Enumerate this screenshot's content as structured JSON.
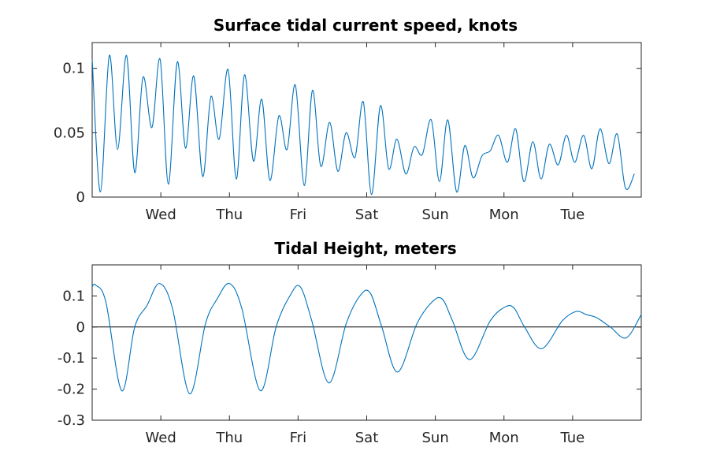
{
  "colors": {
    "series": "#0072BD",
    "axes": "#262626",
    "zero_line": "#000000"
  },
  "chart_data": [
    {
      "type": "line",
      "title": "Surface tidal current speed, knots",
      "xlabel": "",
      "ylabel": "",
      "xlim_days": [
        0,
        8
      ],
      "ylim": [
        0,
        0.12
      ],
      "yticks": [
        0,
        0.05,
        0.1
      ],
      "ytick_labels": [
        "0",
        "0.05",
        "0.1"
      ],
      "xticks_days": [
        1,
        2,
        3,
        4,
        5,
        6,
        7
      ],
      "xtick_labels": [
        "Wed",
        "Thu",
        "Fri",
        "Sat",
        "Sun",
        "Mon",
        "Tue"
      ],
      "grid": false,
      "series": [
        {
          "x_days": [
            0,
            0.12,
            0.25,
            0.37,
            0.5,
            0.62,
            0.74,
            0.87,
            0.99,
            1.11,
            1.24,
            1.36,
            1.48,
            1.61,
            1.73,
            1.85,
            1.98,
            2.1,
            2.22,
            2.35,
            2.47,
            2.59,
            2.72,
            2.84,
            2.96,
            3.09,
            3.21,
            3.33,
            3.46,
            3.58,
            3.7,
            3.83,
            3.95,
            4.07,
            4.2,
            4.32,
            4.44,
            4.57,
            4.69,
            4.81,
            4.94,
            5.06,
            5.18,
            5.31,
            5.43,
            5.55,
            5.68,
            5.8,
            5.92,
            6.05,
            6.17,
            6.29,
            6.42,
            6.54,
            6.66,
            6.79,
            6.91,
            7.03,
            7.16,
            7.28,
            7.4,
            7.53,
            7.65,
            7.77,
            7.9
          ],
          "y": [
            0.107,
            0.004,
            0.11,
            0.037,
            0.11,
            0.019,
            0.093,
            0.054,
            0.107,
            0.01,
            0.105,
            0.038,
            0.094,
            0.016,
            0.078,
            0.045,
            0.099,
            0.014,
            0.095,
            0.028,
            0.076,
            0.013,
            0.063,
            0.037,
            0.087,
            0.009,
            0.083,
            0.024,
            0.058,
            0.02,
            0.05,
            0.031,
            0.074,
            0.002,
            0.071,
            0.022,
            0.045,
            0.018,
            0.039,
            0.033,
            0.06,
            0.012,
            0.06,
            0.004,
            0.04,
            0.015,
            0.032,
            0.036,
            0.048,
            0.027,
            0.053,
            0.012,
            0.043,
            0.014,
            0.041,
            0.025,
            0.048,
            0.027,
            0.048,
            0.022,
            0.053,
            0.026,
            0.049,
            0.007,
            0.018
          ]
        }
      ]
    },
    {
      "type": "line",
      "title": "Tidal Height, meters",
      "xlabel": "",
      "ylabel": "",
      "xlim_days": [
        0,
        8
      ],
      "ylim": [
        -0.3,
        0.2
      ],
      "yticks": [
        -0.3,
        -0.2,
        -0.1,
        0,
        0.1
      ],
      "ytick_labels": [
        "-0.3",
        "-0.2",
        "-0.1",
        "0",
        "0.1"
      ],
      "xticks_days": [
        1,
        2,
        3,
        4,
        5,
        6,
        7
      ],
      "xtick_labels": [
        "Wed",
        "Thu",
        "Fri",
        "Sat",
        "Sun",
        "Mon",
        "Tue"
      ],
      "grid": false,
      "reference_line_y": 0,
      "series": [
        {
          "x_days": [
            0,
            0.05,
            0.2,
            0.43,
            0.62,
            0.8,
            0.98,
            1.17,
            1.42,
            1.65,
            1.82,
            2.0,
            2.18,
            2.45,
            2.68,
            2.88,
            3.03,
            3.2,
            3.45,
            3.7,
            3.9,
            4.05,
            4.22,
            4.45,
            4.73,
            4.95,
            5.1,
            5.25,
            5.5,
            5.8,
            6.02,
            6.15,
            6.3,
            6.55,
            6.85,
            7.05,
            7.2,
            7.35,
            7.55,
            7.78,
            8.0
          ],
          "y": [
            0.13,
            0.135,
            0.08,
            -0.205,
            0.0,
            0.07,
            0.14,
            0.06,
            -0.215,
            0.01,
            0.09,
            0.14,
            0.06,
            -0.205,
            0.0,
            0.1,
            0.13,
            0.02,
            -0.18,
            0.01,
            0.1,
            0.11,
            0.0,
            -0.145,
            0.01,
            0.08,
            0.09,
            0.02,
            -0.105,
            0.02,
            0.065,
            0.06,
            0.0,
            -0.07,
            0.02,
            0.05,
            0.04,
            0.03,
            0.0,
            -0.035,
            0.04
          ]
        }
      ]
    }
  ]
}
